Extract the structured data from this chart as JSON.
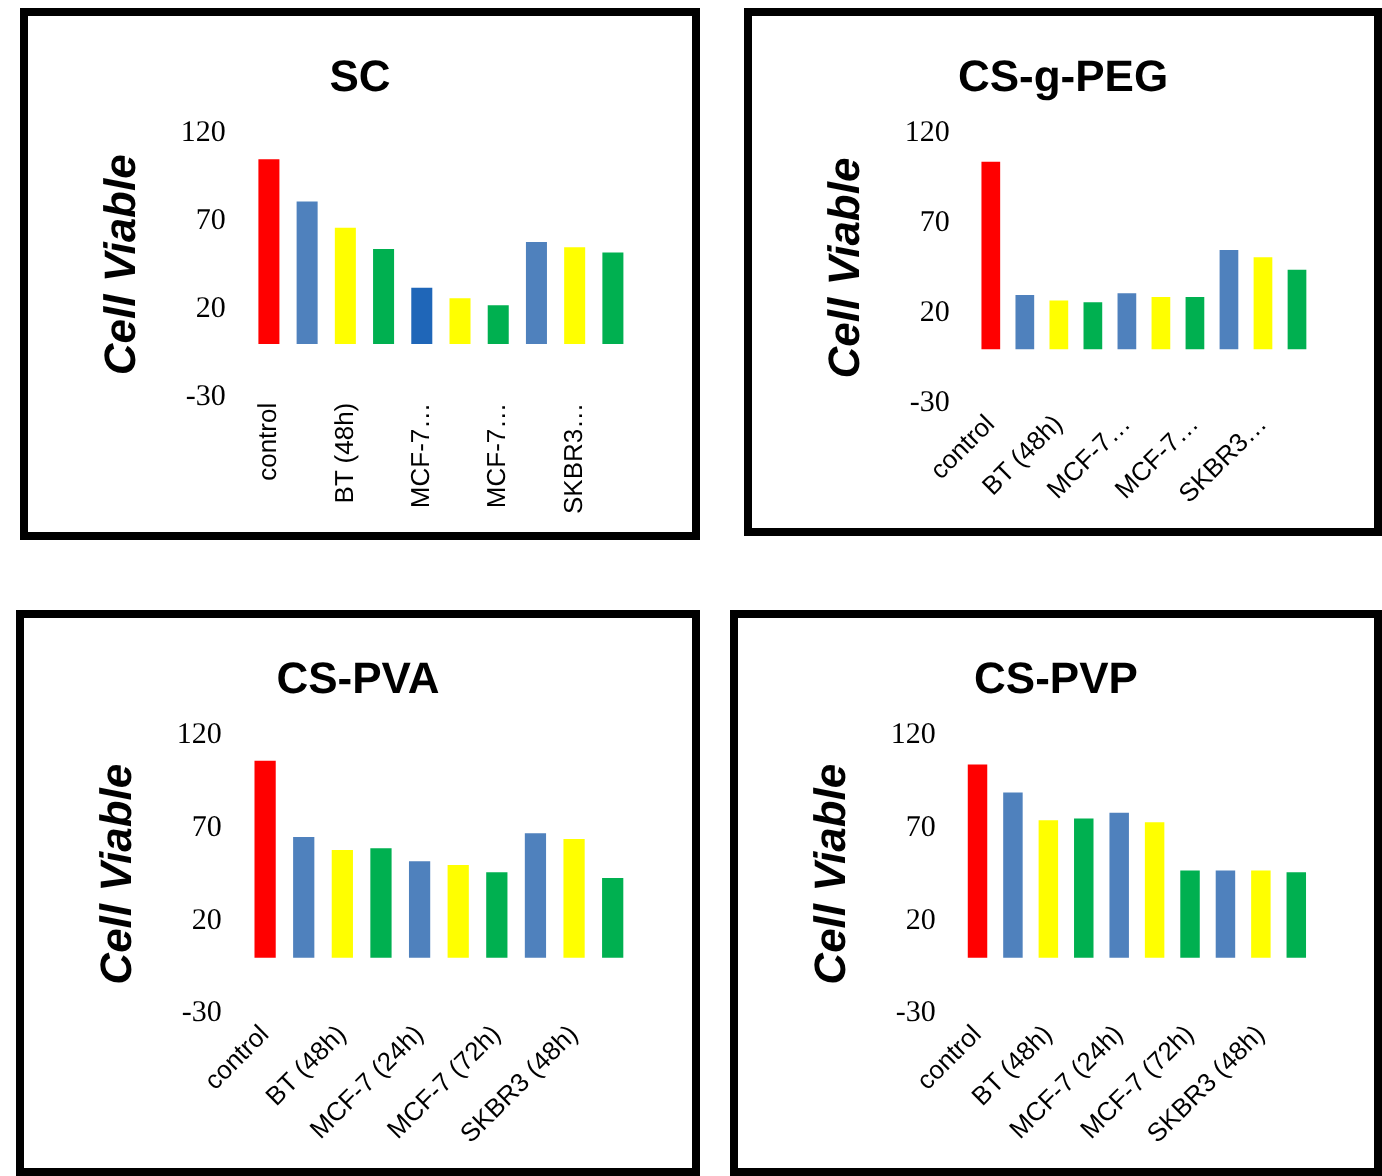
{
  "chart_data": [
    {
      "type": "bar",
      "title": "SC",
      "ylabel": "Cell Viable",
      "categories": [
        "control",
        null,
        "BT (48h)",
        null,
        "MCF-7…",
        null,
        "MCF-7…",
        null,
        "SKBR3…",
        null
      ],
      "values": [
        105,
        81,
        66,
        54,
        32,
        26,
        22,
        58,
        55,
        52
      ],
      "colors": [
        "#ff0000",
        "#4f81bd",
        "#ffff00",
        "#00b050",
        "#1f66b8",
        "#ffff00",
        "#00b050",
        "#4f81bd",
        "#ffff00",
        "#00b050"
      ],
      "ylim": [
        -30,
        120
      ],
      "yticks": [
        -30,
        20,
        70,
        120
      ],
      "grid": false,
      "legend": false
    },
    {
      "type": "bar",
      "title": "CS-g-PEG",
      "ylabel": "Cell Viable",
      "categories": [
        "control",
        null,
        "BT (48h)",
        null,
        "MCF-7…",
        null,
        "MCF-7…",
        null,
        "SKBR3…",
        null
      ],
      "values": [
        104,
        30,
        27,
        26,
        31,
        29,
        29,
        55,
        51,
        44
      ],
      "colors": [
        "#ff0000",
        "#4f81bd",
        "#ffff00",
        "#00b050",
        "#4f81bd",
        "#ffff00",
        "#00b050",
        "#4f81bd",
        "#ffff00",
        "#00b050"
      ],
      "ylim": [
        -30,
        120
      ],
      "yticks": [
        -30,
        20,
        70,
        120
      ],
      "grid": false,
      "legend": false
    },
    {
      "type": "bar",
      "title": "CS-PVA",
      "ylabel": "Cell Viable",
      "categories": [
        "control",
        null,
        "BT (48h)",
        null,
        "MCF-7 (24h)",
        null,
        "MCF-7 (72h)",
        null,
        "SKBR3 (48h)",
        null
      ],
      "values": [
        106,
        65,
        58,
        59,
        52,
        50,
        46,
        67,
        64,
        43
      ],
      "colors": [
        "#ff0000",
        "#4f81bd",
        "#ffff00",
        "#00b050",
        "#4f81bd",
        "#ffff00",
        "#00b050",
        "#4f81bd",
        "#ffff00",
        "#00b050"
      ],
      "ylim": [
        -30,
        120
      ],
      "yticks": [
        -30,
        20,
        70,
        120
      ],
      "grid": false,
      "legend": false
    },
    {
      "type": "bar",
      "title": "CS-PVP",
      "ylabel": "Cell Viable",
      "categories": [
        "control",
        null,
        "BT (48h)",
        null,
        "MCF-7 (24h)",
        null,
        "MCF-7 (72h)",
        null,
        "SKBR3 (48h)",
        null
      ],
      "values": [
        104,
        89,
        74,
        75,
        78,
        73,
        47,
        47,
        47,
        46
      ],
      "colors": [
        "#ff0000",
        "#4f81bd",
        "#ffff00",
        "#00b050",
        "#4f81bd",
        "#ffff00",
        "#00b050",
        "#4f81bd",
        "#ffff00",
        "#00b050"
      ],
      "ylim": [
        -30,
        120
      ],
      "yticks": [
        -30,
        20,
        70,
        120
      ],
      "grid": false,
      "legend": false
    }
  ]
}
